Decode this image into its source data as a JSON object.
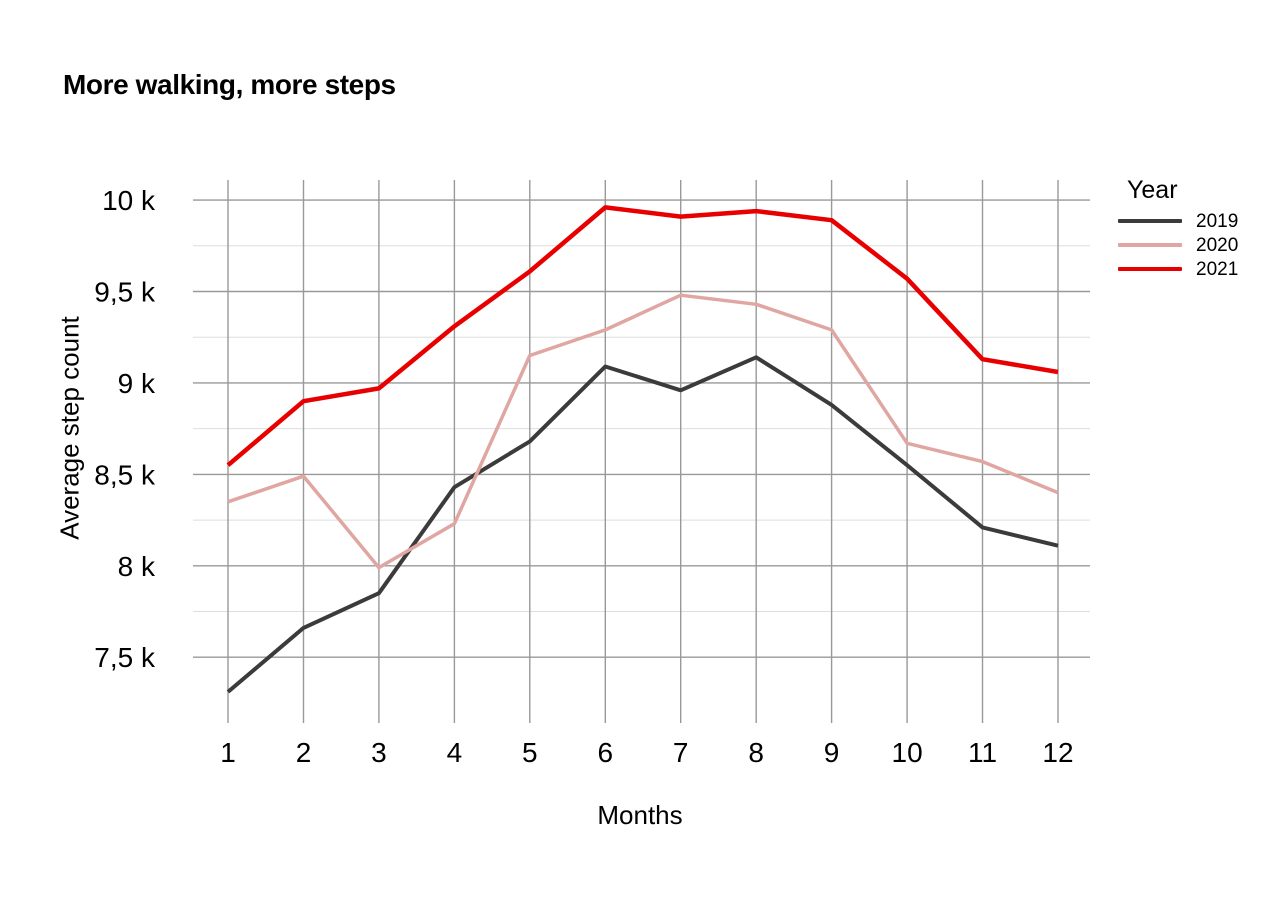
{
  "chart_data": {
    "type": "line",
    "title": "More walking, more steps",
    "xlabel": "Months",
    "ylabel": "Average step count",
    "categories": [
      1,
      2,
      3,
      4,
      5,
      6,
      7,
      8,
      9,
      10,
      11,
      12
    ],
    "series": [
      {
        "name": "2019",
        "color": "#3b3b3b",
        "stroke_width": 4,
        "values": [
          7310,
          7660,
          7850,
          8430,
          8680,
          9090,
          8960,
          9140,
          8880,
          8550,
          8210,
          8110
        ]
      },
      {
        "name": "2020",
        "color": "#dfa6a2",
        "stroke_width": 3.5,
        "values": [
          8350,
          8490,
          7990,
          8230,
          9150,
          9290,
          9480,
          9430,
          9290,
          8670,
          8570,
          8400
        ]
      },
      {
        "name": "2021",
        "color": "#e80000",
        "stroke_width": 4.5,
        "values": [
          8550,
          8900,
          8970,
          9310,
          9610,
          9960,
          9910,
          9940,
          9890,
          9570,
          9130,
          9060
        ]
      }
    ],
    "y_ticks": {
      "labels": [
        "10 k",
        "9,5 k",
        "9 k",
        "8,5 k",
        "8 k",
        "7,5 k"
      ],
      "values": [
        10000,
        9500,
        9000,
        8500,
        8000,
        7500
      ]
    },
    "y_minor_ticks": [
      9750,
      9250,
      8750,
      8250,
      7750
    ],
    "ylim": [
      7140,
      10110
    ],
    "grid": true,
    "legend": {
      "title": "Year",
      "position": "right",
      "entries": [
        "2019",
        "2020",
        "2021"
      ]
    },
    "colors": {
      "grid_major": "#999999",
      "grid_minor": "#dedede",
      "text": "#000000",
      "background": "#ffffff"
    }
  }
}
